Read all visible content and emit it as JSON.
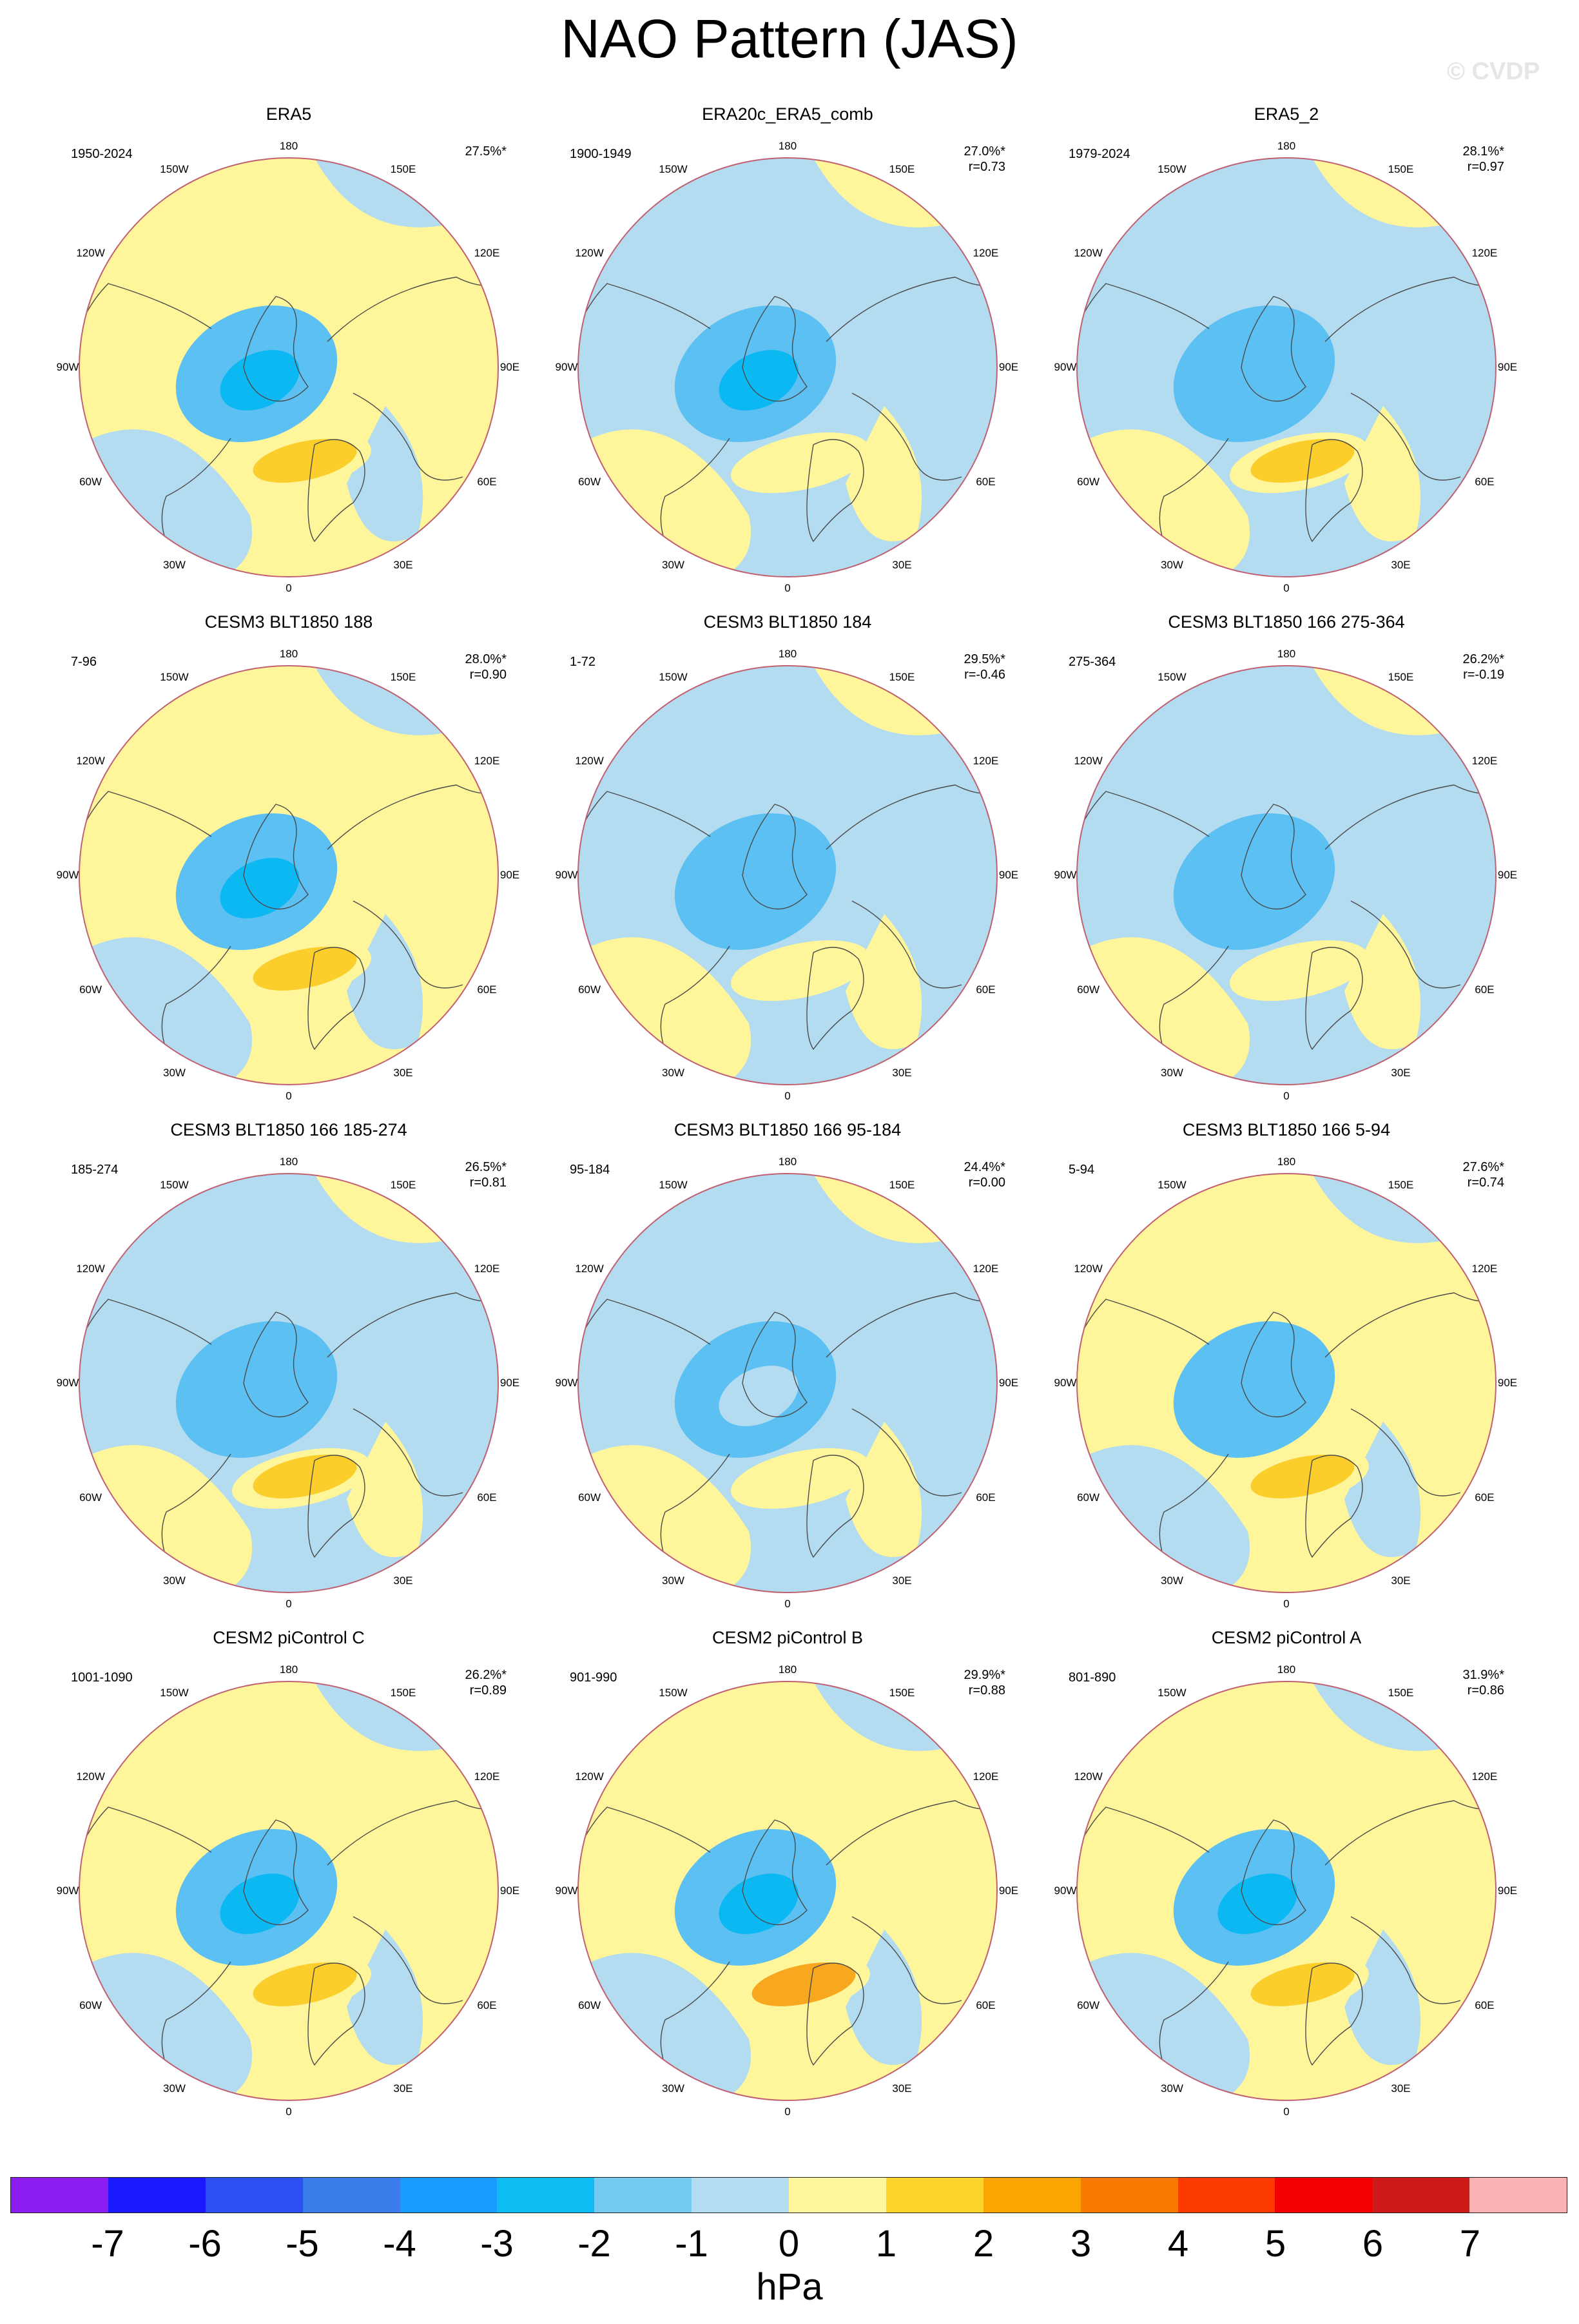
{
  "title": "NAO Pattern (JAS)",
  "watermark": "© CVDP",
  "units": "hPa",
  "colors": {
    "blue1": "#b3dcf0",
    "blue2": "#5cc0f2",
    "blue3": "#0cb8f2",
    "yellow1": "#fff59a",
    "yellow2": "#fcce2c",
    "orange": "#f8a81e",
    "coast": "#4a4a4a",
    "rim": "#c06070"
  },
  "longitude_labels": [
    "180",
    "150E",
    "120E",
    "90E",
    "60E",
    "30E",
    "0",
    "30W",
    "60W",
    "90W",
    "120W",
    "150W"
  ],
  "colorbar": {
    "colors": [
      "#8a1cf0",
      "#1a1aff",
      "#2b4ff0",
      "#3a7cea",
      "#1a9cff",
      "#0cbcf2",
      "#74cbf1",
      "#b3dcf0",
      "#fff59a",
      "#fcd52c",
      "#fca400",
      "#fa7a00",
      "#fc3a00",
      "#f20000",
      "#cf1a1a",
      "#fbb2b2"
    ],
    "ticks": [
      "-7",
      "-6",
      "-5",
      "-4",
      "-3",
      "-2",
      "-1",
      "0",
      "1",
      "2",
      "3",
      "4",
      "5",
      "6",
      "7"
    ]
  },
  "panels": [
    {
      "title": "ERA5",
      "period": "1950-2024",
      "pct": "27.5%*",
      "r": "",
      "bg": "yellow1",
      "high_strength": "yellow2",
      "low_strength": "blue3"
    },
    {
      "title": "ERA20c_ERA5_comb",
      "period": "1900-1949",
      "pct": "27.0%*",
      "r": "r=0.73",
      "bg": "blue1",
      "high_strength": "yellow1",
      "low_strength": "blue3"
    },
    {
      "title": "ERA5_2",
      "period": "1979-2024",
      "pct": "28.1%*",
      "r": "r=0.97",
      "bg": "blue1",
      "high_strength": "yellow2",
      "low_strength": "blue2"
    },
    {
      "title": "CESM3 BLT1850 188",
      "period": "7-96",
      "pct": "28.0%*",
      "r": "r=0.90",
      "bg": "yellow1",
      "high_strength": "yellow2",
      "low_strength": "blue3"
    },
    {
      "title": "CESM3 BLT1850 184",
      "period": "1-72",
      "pct": "29.5%*",
      "r": "r=-0.46",
      "bg": "blue1",
      "high_strength": "yellow1",
      "low_strength": "blue2"
    },
    {
      "title": "CESM3 BLT1850 166 275-364",
      "period": "275-364",
      "pct": "26.2%*",
      "r": "r=-0.19",
      "bg": "blue1",
      "high_strength": "yellow1",
      "low_strength": "blue2"
    },
    {
      "title": "CESM3 BLT1850 166 185-274",
      "period": "185-274",
      "pct": "26.5%*",
      "r": "r=0.81",
      "bg": "blue1",
      "high_strength": "yellow2",
      "low_strength": "blue2"
    },
    {
      "title": "CESM3 BLT1850 166 95-184",
      "period": "95-184",
      "pct": "24.4%*",
      "r": "r=0.00",
      "bg": "blue1",
      "high_strength": "yellow1",
      "low_strength": "blue1"
    },
    {
      "title": "CESM3 BLT1850 166 5-94",
      "period": "5-94",
      "pct": "27.6%*",
      "r": "r=0.74",
      "bg": "yellow1",
      "high_strength": "yellow2",
      "low_strength": "blue2"
    },
    {
      "title": "CESM2 piControl C",
      "period": "1001-1090",
      "pct": "26.2%*",
      "r": "r=0.89",
      "bg": "yellow1",
      "high_strength": "yellow2",
      "low_strength": "blue3"
    },
    {
      "title": "CESM2 piControl B",
      "period": "901-990",
      "pct": "29.9%*",
      "r": "r=0.88",
      "bg": "yellow1",
      "high_strength": "orange",
      "low_strength": "blue3"
    },
    {
      "title": "CESM2 piControl A",
      "period": "801-890",
      "pct": "31.9%*",
      "r": "r=0.86",
      "bg": "yellow1",
      "high_strength": "yellow2",
      "low_strength": "blue3"
    }
  ]
}
